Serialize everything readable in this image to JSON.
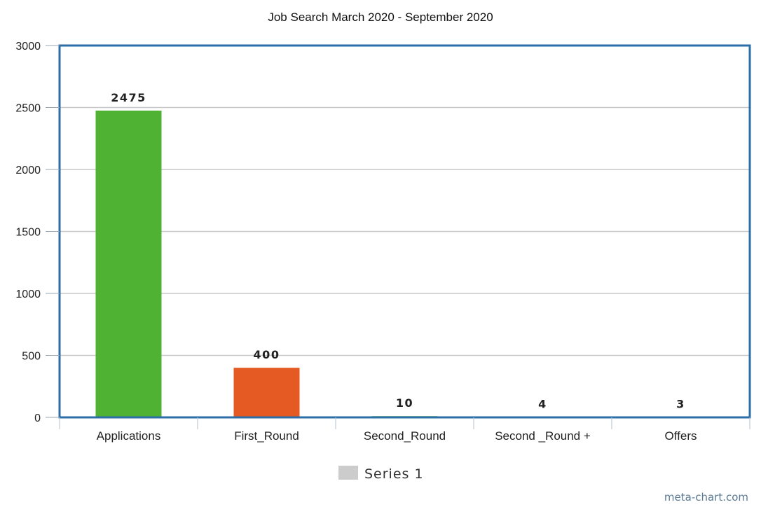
{
  "chart_data": {
    "type": "bar",
    "title": "Job Search March 2020 - September 2020",
    "categories": [
      "Applications",
      "First_Round",
      "Second_Round",
      "Second _Round +",
      "Offers"
    ],
    "series": [
      {
        "name": "Series 1",
        "values": [
          2475,
          400,
          10,
          4,
          3
        ]
      }
    ],
    "data_labels": [
      "2475",
      "400",
      "10",
      "4",
      "3"
    ],
    "bar_colors": [
      "#4fb233",
      "#e55a22",
      "#4fb233",
      "#4fb233",
      "#4fb233"
    ],
    "ylim": [
      0,
      3000
    ],
    "yticks": [
      0,
      500,
      1000,
      1500,
      2000,
      2500,
      3000
    ],
    "ytick_labels": [
      "0",
      "500",
      "1000",
      "1500",
      "2000",
      "2500",
      "3000"
    ],
    "xlabel": "",
    "ylabel": "",
    "grid": true,
    "legend": "bottom-center",
    "frame_color": "#2b6ea8",
    "grid_color": "#c8c8c8",
    "legend_swatch_color": "#cccccc"
  },
  "credit": "meta-chart.com"
}
